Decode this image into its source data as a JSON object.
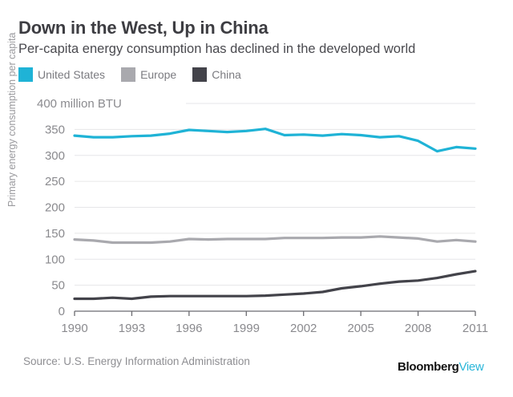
{
  "header": {
    "title": "Down in the West, Up in China",
    "subtitle": "Per-capita energy consumption has declined in the developed world"
  },
  "footer": {
    "source": "Source: U.S. Energy Information Administration",
    "brand_main": "Bloomberg",
    "brand_accent": "View"
  },
  "chart_data": {
    "type": "line",
    "title": "Down in the West, Up in China",
    "subtitle": "Per-capita energy consumption has declined in the developed world",
    "xlabel": "",
    "ylabel": "Primary energy consumption per capita",
    "y_unit_label": "400 million BTU",
    "ylim": [
      0,
      400
    ],
    "xlim": [
      1990,
      2011
    ],
    "grid": true,
    "legend_position": "top-left",
    "x_ticks": [
      1990,
      1993,
      1996,
      1999,
      2002,
      2005,
      2008,
      2011
    ],
    "y_ticks": [
      0,
      50,
      100,
      150,
      200,
      250,
      300,
      350,
      400
    ],
    "y_tick_labels": [
      "0",
      "50",
      "100",
      "150",
      "200",
      "250",
      "300",
      "350",
      "400 million BTU"
    ],
    "x": [
      1990,
      1991,
      1992,
      1993,
      1994,
      1995,
      1996,
      1997,
      1998,
      1999,
      2000,
      2001,
      2002,
      2003,
      2004,
      2005,
      2006,
      2007,
      2008,
      2009,
      2010,
      2011
    ],
    "series": [
      {
        "name": "United States",
        "color": "#1fb3d6",
        "values": [
          338,
          335,
          335,
          337,
          338,
          342,
          349,
          347,
          345,
          347,
          351,
          339,
          340,
          338,
          341,
          339,
          335,
          337,
          328,
          308,
          316,
          313
        ]
      },
      {
        "name": "Europe",
        "color": "#a9a9ae",
        "values": [
          138,
          136,
          132,
          132,
          132,
          134,
          139,
          138,
          139,
          139,
          139,
          141,
          141,
          141,
          142,
          142,
          144,
          142,
          140,
          134,
          137,
          134
        ]
      },
      {
        "name": "China",
        "color": "#43434a",
        "values": [
          24,
          24,
          26,
          24,
          28,
          29,
          29,
          29,
          29,
          29,
          30,
          32,
          34,
          37,
          44,
          48,
          53,
          57,
          59,
          64,
          71,
          77
        ]
      }
    ]
  }
}
